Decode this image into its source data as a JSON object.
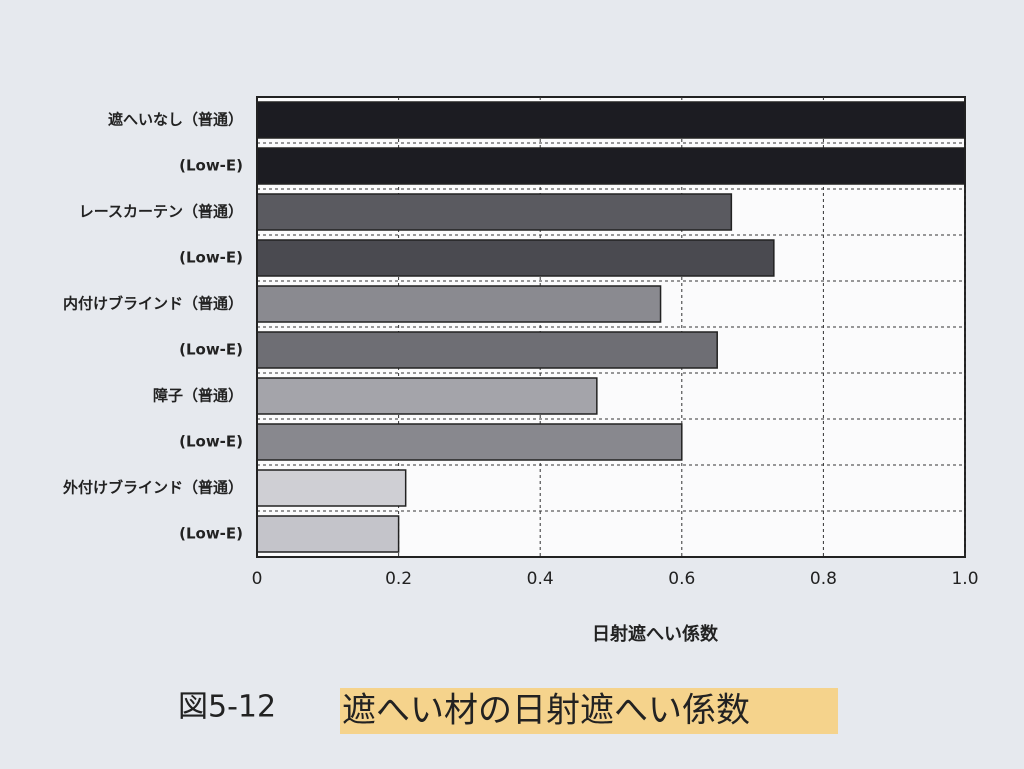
{
  "chart_data": {
    "type": "bar",
    "orientation": "horizontal",
    "categories": [
      "遮へいなし（普通）",
      "(Low-E)",
      "レースカーテン（普通）",
      "(Low-E)",
      "内付けブラインド（普通）",
      "(Low-E)",
      "障子（普通）",
      "(Low-E)",
      "外付けブラインド（普通）",
      "(Low-E)"
    ],
    "values": [
      1.0,
      1.0,
      0.67,
      0.73,
      0.57,
      0.65,
      0.48,
      0.6,
      0.21,
      0.2
    ],
    "colors": [
      "#1c1c22",
      "#1c1c22",
      "#5a5a60",
      "#4a4a50",
      "#8a8a90",
      "#6e6e74",
      "#a4a4aa",
      "#88888e",
      "#cfcfd4",
      "#c4c4ca"
    ],
    "xlim": [
      0,
      1
    ],
    "xticks": [
      0,
      0.2,
      0.4,
      0.6,
      0.8,
      {
        "value": 1,
        "label": "1.0"
      }
    ],
    "xlabel": "日射遮へい係数",
    "grid": true,
    "figure_number": "図5-12",
    "title": "遮へい材の日射遮へい係数"
  }
}
